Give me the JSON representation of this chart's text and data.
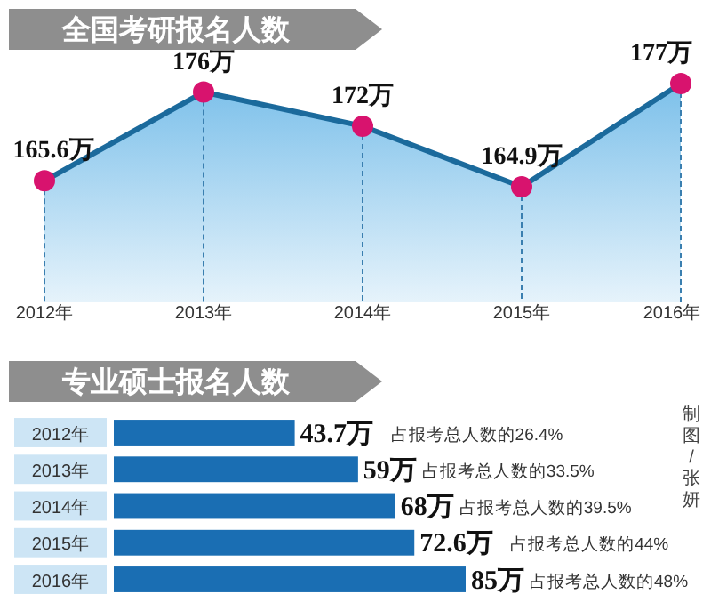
{
  "chart_data": [
    {
      "type": "area",
      "title": "全国考研报名人数",
      "categories": [
        "2012年",
        "2013年",
        "2014年",
        "2015年",
        "2016年"
      ],
      "series": [
        {
          "color": "#1b6a9c",
          "values": [
            165.6,
            176,
            172,
            164.9,
            177
          ],
          "value_labels": [
            "165.6万",
            "176万",
            "172万",
            "164.9万",
            "177万"
          ]
        }
      ],
      "marker": "circle"
    },
    {
      "type": "bar",
      "orientation": "horizontal",
      "title": "专业硕士报名人数",
      "categories": [
        "2012年",
        "2013年",
        "2014年",
        "2015年",
        "2016年"
      ],
      "values": [
        43.7,
        59,
        68,
        72.6,
        85
      ],
      "color": "#1a6eb3",
      "value_labels": [
        "43.7万",
        "59万",
        "68万",
        "72.6万",
        "85万"
      ],
      "annotations": [
        "占报考总人数的26.4%",
        "占报考总人数的33.5%",
        "占报考总人数的39.5%",
        "占报考总人数的44%",
        "占报考总人数的48%",
        "制图/张妍"
      ]
    }
  ]
}
